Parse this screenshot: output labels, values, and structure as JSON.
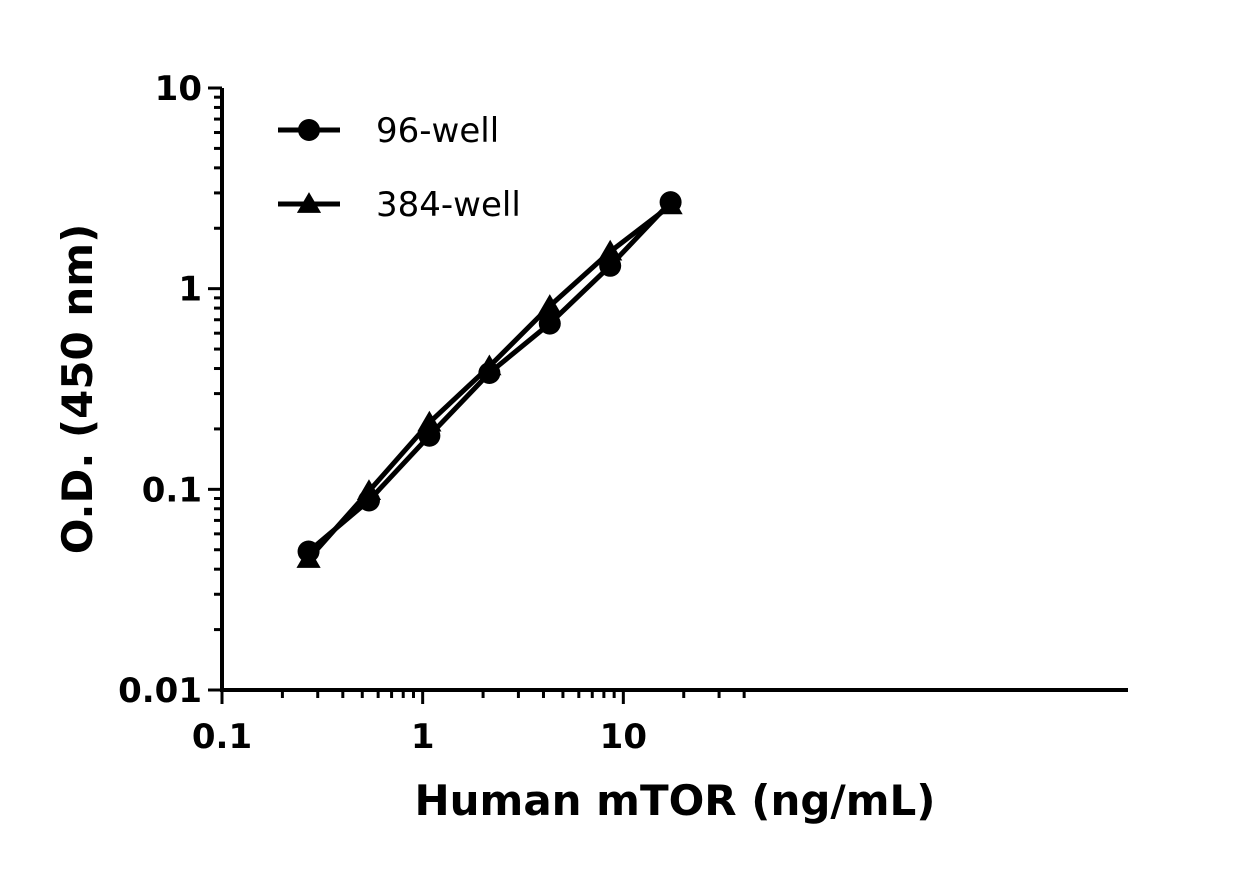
{
  "chart_data": {
    "type": "line",
    "title": "",
    "xlabel": "Human mTOR (ng/mL)",
    "ylabel": "O.D. (450 nm)",
    "x_scale": "log",
    "y_scale": "log",
    "xlim": [
      0.1,
      40
    ],
    "ylim": [
      0.01,
      10
    ],
    "x_ticks": [
      0.1,
      1,
      10
    ],
    "x_tick_labels": [
      "0.1",
      "1",
      "10"
    ],
    "y_ticks": [
      0.01,
      0.1,
      1,
      10
    ],
    "y_tick_labels": [
      "0.01",
      "0.1",
      "1",
      "10"
    ],
    "grid": false,
    "legend_position": "top-left",
    "series": [
      {
        "name": "96-well",
        "marker": "circle",
        "color": "#000000",
        "x": [
          0.27,
          0.54,
          1.08,
          2.15,
          4.3,
          8.6,
          17.2
        ],
        "y": [
          0.049,
          0.088,
          0.185,
          0.38,
          0.67,
          1.3,
          2.7
        ]
      },
      {
        "name": "384-well",
        "marker": "triangle",
        "color": "#000000",
        "x": [
          0.27,
          0.54,
          1.08,
          2.15,
          4.3,
          8.6,
          17.2
        ],
        "y": [
          0.045,
          0.098,
          0.215,
          0.41,
          0.82,
          1.53,
          2.6
        ]
      }
    ]
  }
}
